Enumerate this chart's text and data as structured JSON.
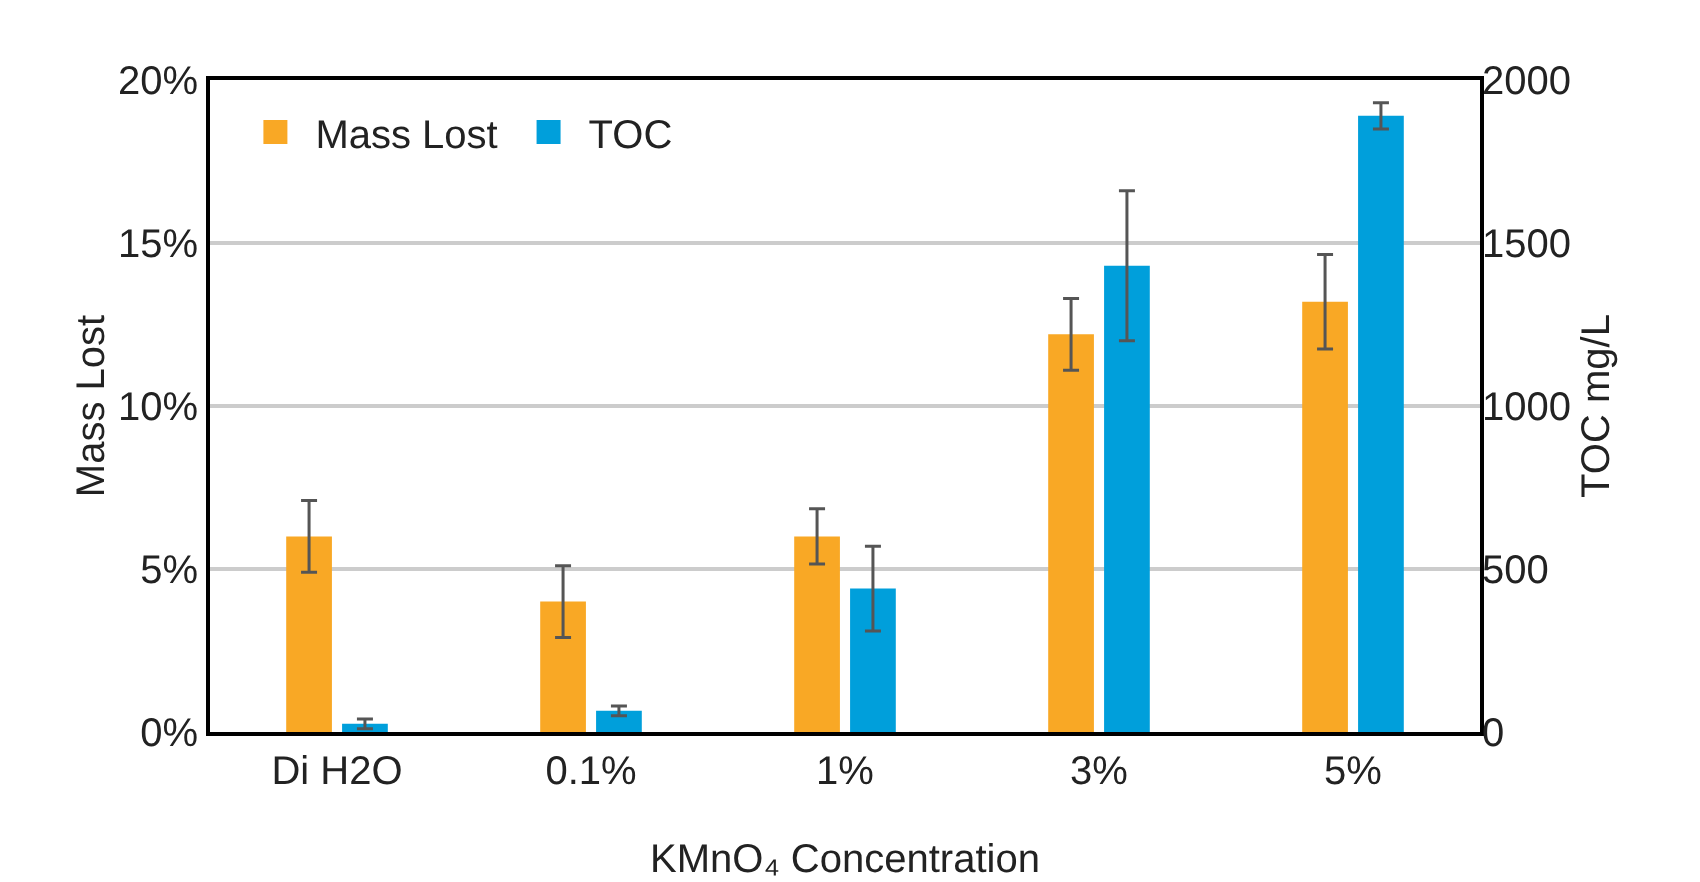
{
  "chart_data": {
    "type": "bar",
    "categories": [
      "Di H2O",
      "0.1%",
      "1%",
      "3%",
      "5%"
    ],
    "series": [
      {
        "name": "Mass Lost",
        "color": "#f9a825",
        "values": [
          6.0,
          4.0,
          6.0,
          12.2,
          13.2
        ],
        "errors": [
          1.1,
          1.1,
          0.85,
          1.1,
          1.45
        ]
      },
      {
        "name": "TOC",
        "color": "#009fdb",
        "axis": "y2",
        "values": [
          25,
          65,
          440,
          1430,
          1890
        ],
        "errors": [
          15,
          15,
          130,
          230,
          40
        ]
      }
    ],
    "xlabel": "KMnO₄ Concentration",
    "ylabel": "Mass Lost",
    "y2label": "TOC mg/L",
    "ylim": [
      0,
      20
    ],
    "yticks": [
      {
        "value": 0,
        "label": "0%"
      },
      {
        "value": 5,
        "label": "5%"
      },
      {
        "value": 10,
        "label": "10%"
      },
      {
        "value": 15,
        "label": "15%"
      },
      {
        "value": 20,
        "label": "20%"
      }
    ],
    "y2lim": [
      0,
      2000
    ],
    "y2ticks": [
      0,
      500,
      1000,
      1500,
      2000
    ],
    "grid": "y",
    "legend": "top left"
  }
}
